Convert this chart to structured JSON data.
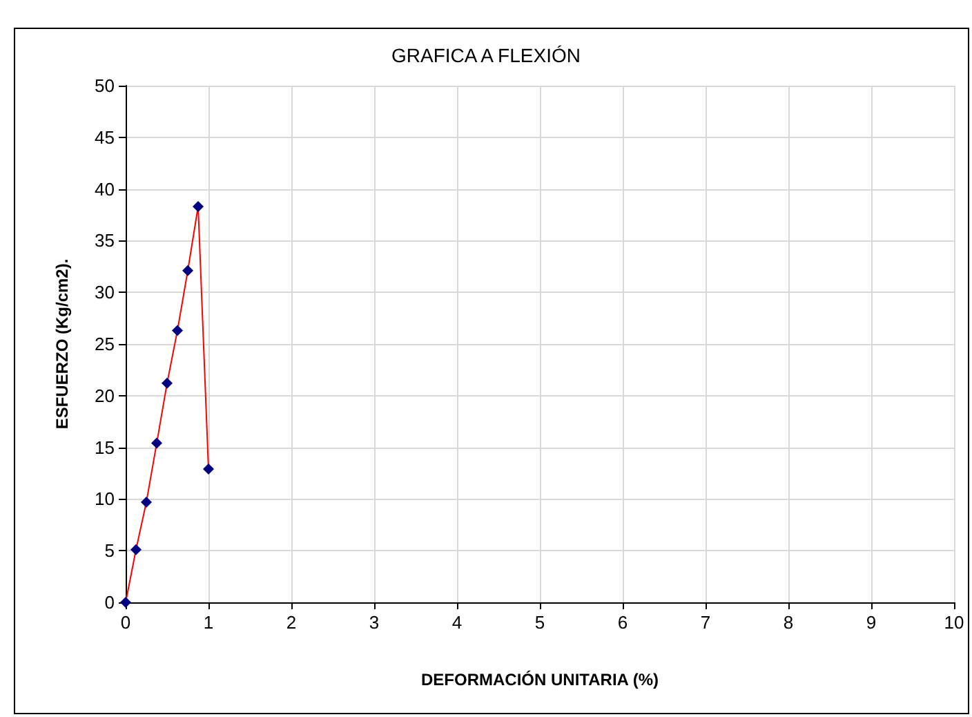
{
  "chart_data": {
    "type": "line",
    "title": "GRAFICA A FLEXIÓN",
    "xlabel": "DEFORMACIÓN UNITARIA (%)",
    "ylabel": "ESFUERZO (Kg/cm2).",
    "x": [
      0,
      0.125,
      0.25,
      0.375,
      0.5,
      0.625,
      0.75,
      0.875,
      1
    ],
    "series": [
      {
        "color": "#ff0000",
        "values": [
          0,
          5.1,
          9.7,
          15.4,
          21.2,
          26.3,
          32.1,
          38.3,
          12.9
        ]
      }
    ],
    "xlim": [
      0,
      10
    ],
    "xticks": [
      0,
      1,
      2,
      3,
      4,
      5,
      6,
      7,
      8,
      9,
      10
    ],
    "ylim": [
      0,
      50
    ],
    "yticks": [
      0,
      5,
      10,
      15,
      20,
      25,
      30,
      35,
      40,
      45,
      50
    ],
    "grid": true,
    "marker": "diamond",
    "line_style": "solid"
  }
}
